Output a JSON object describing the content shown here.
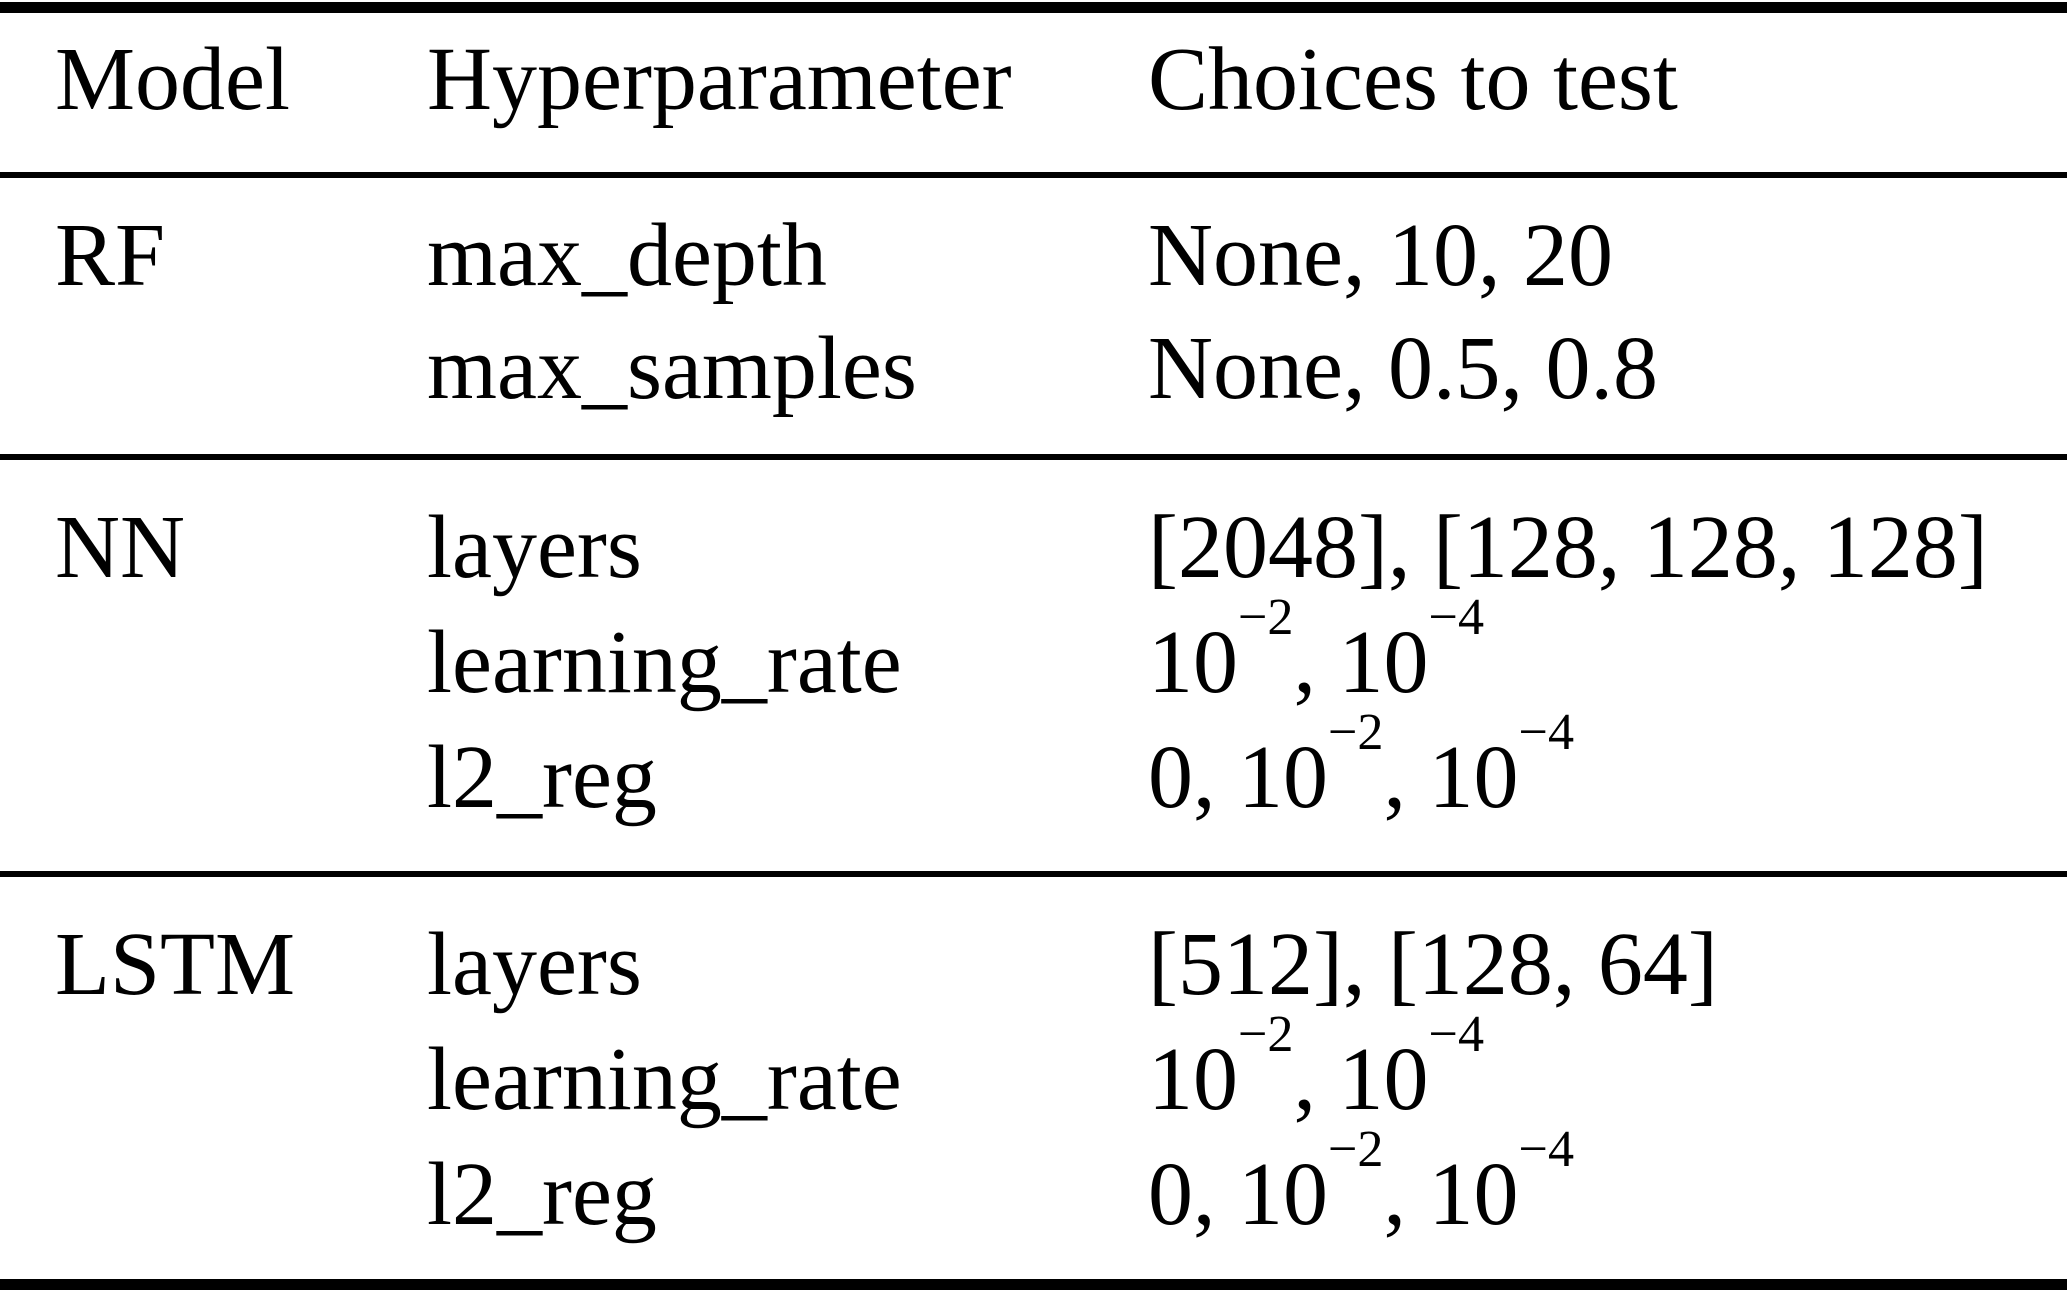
{
  "table": {
    "colors": {
      "text": "#000000",
      "background": "#ffffff",
      "rule": "#000000"
    },
    "header": {
      "model": "Model",
      "hyperparameter": "Hyperparameter",
      "choices": "Choices to test"
    },
    "sections": [
      {
        "model": "RF",
        "rows": [
          {
            "hyperparameter": "max_depth",
            "choices": [
              {
                "t": "None, 10, 20"
              }
            ]
          },
          {
            "hyperparameter": "max_samples",
            "choices": [
              {
                "t": "None, 0.5, 0.8"
              }
            ]
          }
        ]
      },
      {
        "model": "NN",
        "rows": [
          {
            "hyperparameter": "layers",
            "choices": [
              {
                "t": "[2048], [128, 128, 128]"
              }
            ]
          },
          {
            "hyperparameter": "learning_rate",
            "choices": [
              {
                "t": "10"
              },
              {
                "sup": "−2"
              },
              {
                "t": ", 10"
              },
              {
                "sup": "−4"
              }
            ]
          },
          {
            "hyperparameter": "l2_reg",
            "choices": [
              {
                "t": "0, 10"
              },
              {
                "sup": "−2"
              },
              {
                "t": ", 10"
              },
              {
                "sup": "−4"
              }
            ]
          }
        ]
      },
      {
        "model": "LSTM",
        "rows": [
          {
            "hyperparameter": "layers",
            "choices": [
              {
                "t": "[512], [128, 64]"
              }
            ]
          },
          {
            "hyperparameter": "learning_rate",
            "choices": [
              {
                "t": "10"
              },
              {
                "sup": "−2"
              },
              {
                "t": ", 10"
              },
              {
                "sup": "−4"
              }
            ]
          },
          {
            "hyperparameter": "l2_reg",
            "choices": [
              {
                "t": "0, 10"
              },
              {
                "sup": "−2"
              },
              {
                "t": ", 10"
              },
              {
                "sup": "−4"
              }
            ]
          }
        ]
      }
    ]
  }
}
